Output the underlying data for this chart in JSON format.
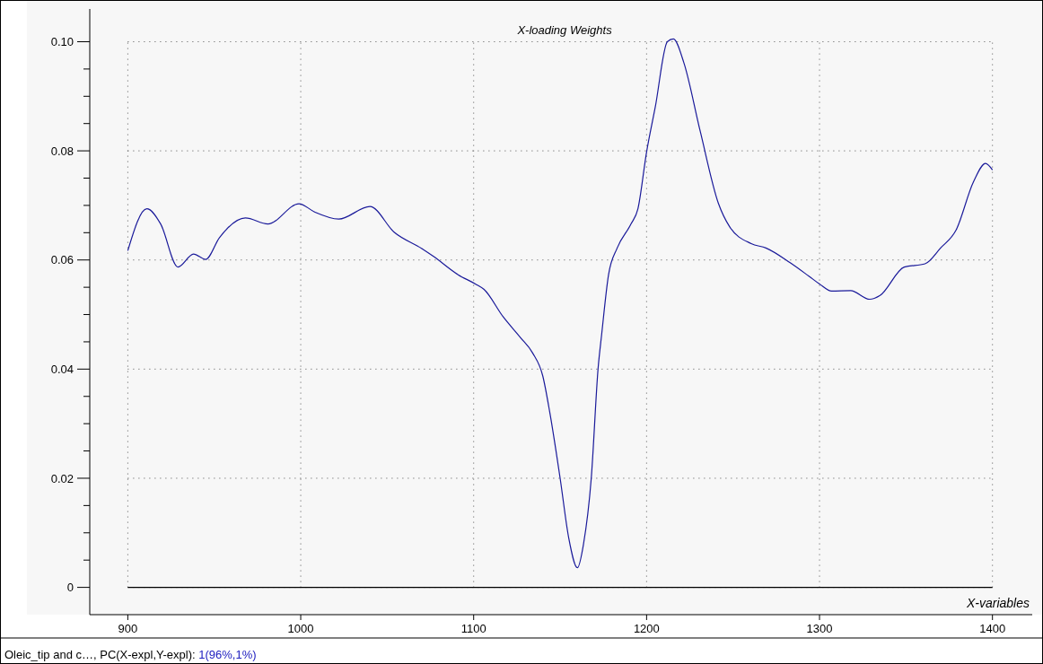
{
  "chart_data": {
    "type": "line",
    "title": "X-loading Weights",
    "xlabel": "X-variables",
    "annotations": [
      "Oleic_tip and c…, PC(X-expl,Y-expl): ",
      "1(96%,1%)"
    ],
    "series": [
      {
        "color": "#1a1a9a",
        "x": [
          900,
          911,
          919,
          929,
          938,
          945,
          953,
          968,
          981,
          999,
          1008,
          1022,
          1040,
          1054,
          1070,
          1077,
          1091,
          1101,
          1106,
          1117,
          1127,
          1134,
          1140,
          1144,
          1150,
          1155,
          1160,
          1163.5,
          1168,
          1172,
          1174,
          1178,
          1183,
          1191,
          1195,
          1200,
          1205,
          1212,
          1215.5,
          1221.5,
          1231,
          1241.5,
          1248,
          1260.5,
          1269,
          1283,
          1294,
          1300,
          1307,
          1318,
          1329,
          1335,
          1349,
          1361,
          1370,
          1379,
          1389,
          1396,
          1400
        ],
        "values": [
          0.0617,
          0.0694,
          0.0666,
          0.0587,
          0.0611,
          0.0601,
          0.0641,
          0.0677,
          0.0666,
          0.0703,
          0.0688,
          0.0675,
          0.0698,
          0.0651,
          0.0621,
          0.0606,
          0.0573,
          0.0556,
          0.0546,
          0.0496,
          0.0458,
          0.043,
          0.0387,
          0.0321,
          0.02,
          0.009,
          0.0036,
          0.0079,
          0.02,
          0.0403,
          0.0463,
          0.0573,
          0.0622,
          0.0666,
          0.0694,
          0.0798,
          0.088,
          0.1,
          0.1005,
          0.0962,
          0.0836,
          0.0704,
          0.0661,
          0.063,
          0.0622,
          0.0595,
          0.057,
          0.0556,
          0.0543,
          0.0544,
          0.0528,
          0.0535,
          0.0587,
          0.0593,
          0.0622,
          0.0655,
          0.0743,
          0.0777,
          0.0765
        ]
      }
    ],
    "xlim": [
      878,
      1423
    ],
    "ylim": [
      -0.005,
      0.106
    ],
    "xticks": [
      900,
      1000,
      1100,
      1200,
      1300,
      1400
    ],
    "yticks": [
      {
        "value": 0,
        "label": "0"
      },
      {
        "value": 0.005,
        "label": null
      },
      {
        "value": 0.01,
        "label": null
      },
      {
        "value": 0.015,
        "label": null
      },
      {
        "value": 0.02,
        "label": "0.02"
      },
      {
        "value": 0.025,
        "label": null
      },
      {
        "value": 0.03,
        "label": null
      },
      {
        "value": 0.035,
        "label": null
      },
      {
        "value": 0.04,
        "label": "0.04"
      },
      {
        "value": 0.045,
        "label": null
      },
      {
        "value": 0.05,
        "label": null
      },
      {
        "value": 0.055,
        "label": null
      },
      {
        "value": 0.06,
        "label": "0.06"
      },
      {
        "value": 0.065,
        "label": null
      },
      {
        "value": 0.07,
        "label": null
      },
      {
        "value": 0.075,
        "label": null
      },
      {
        "value": 0.08,
        "label": "0.08"
      },
      {
        "value": 0.085,
        "label": null
      },
      {
        "value": 0.09,
        "label": null
      },
      {
        "value": 0.095,
        "label": null
      },
      {
        "value": 0.1,
        "label": "0.10"
      }
    ],
    "ref_lines": [
      {
        "axis": "y",
        "value": 0,
        "color": "#000000"
      }
    ],
    "grid": true,
    "marker": "none",
    "line_style": "solid"
  }
}
